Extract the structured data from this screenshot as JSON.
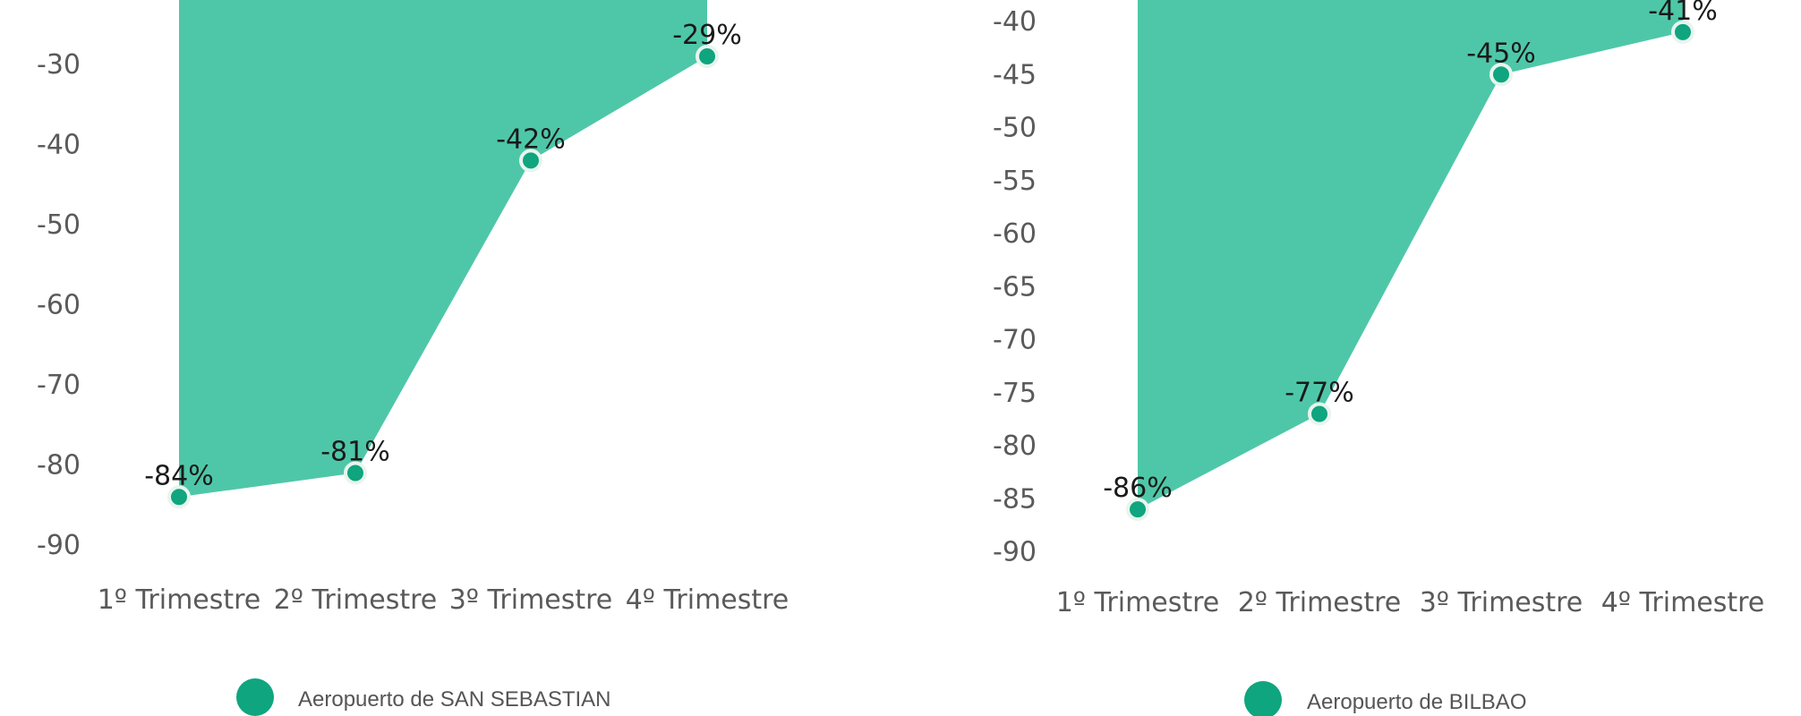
{
  "colors": {
    "area": "#4EC7A8",
    "marker": "#0FA57E",
    "marker_stroke": "#E8F5EE"
  },
  "chart_data": [
    {
      "type": "area",
      "categories": [
        "1º Trimestre",
        "2º Trimestre",
        "3º Trimestre",
        "4º Trimestre"
      ],
      "series": [
        {
          "name": "Aeropuerto de SAN SEBASTIAN",
          "values": [
            -84,
            -81,
            -42,
            -29
          ]
        }
      ],
      "data_labels": [
        "-84%",
        "-81%",
        "-42%",
        "-29%"
      ],
      "y_ticks": [
        "-30",
        "-40",
        "-50",
        "-60",
        "-70",
        "-80",
        "-90"
      ],
      "legend_position": "bottom",
      "grid": false
    },
    {
      "type": "area",
      "categories": [
        "1º Trimestre",
        "2º Trimestre",
        "3º Trimestre",
        "4º Trimestre"
      ],
      "series": [
        {
          "name": "Aeropuerto de BILBAO",
          "values": [
            -86,
            -77,
            -45,
            -41
          ]
        }
      ],
      "data_labels": [
        "-86%",
        "-77%",
        "-45%",
        "-41%"
      ],
      "y_ticks": [
        "-40",
        "-45",
        "-50",
        "-55",
        "-60",
        "-65",
        "-70",
        "-75",
        "-80",
        "-85",
        "-90"
      ],
      "legend_position": "bottom",
      "grid": false
    }
  ]
}
